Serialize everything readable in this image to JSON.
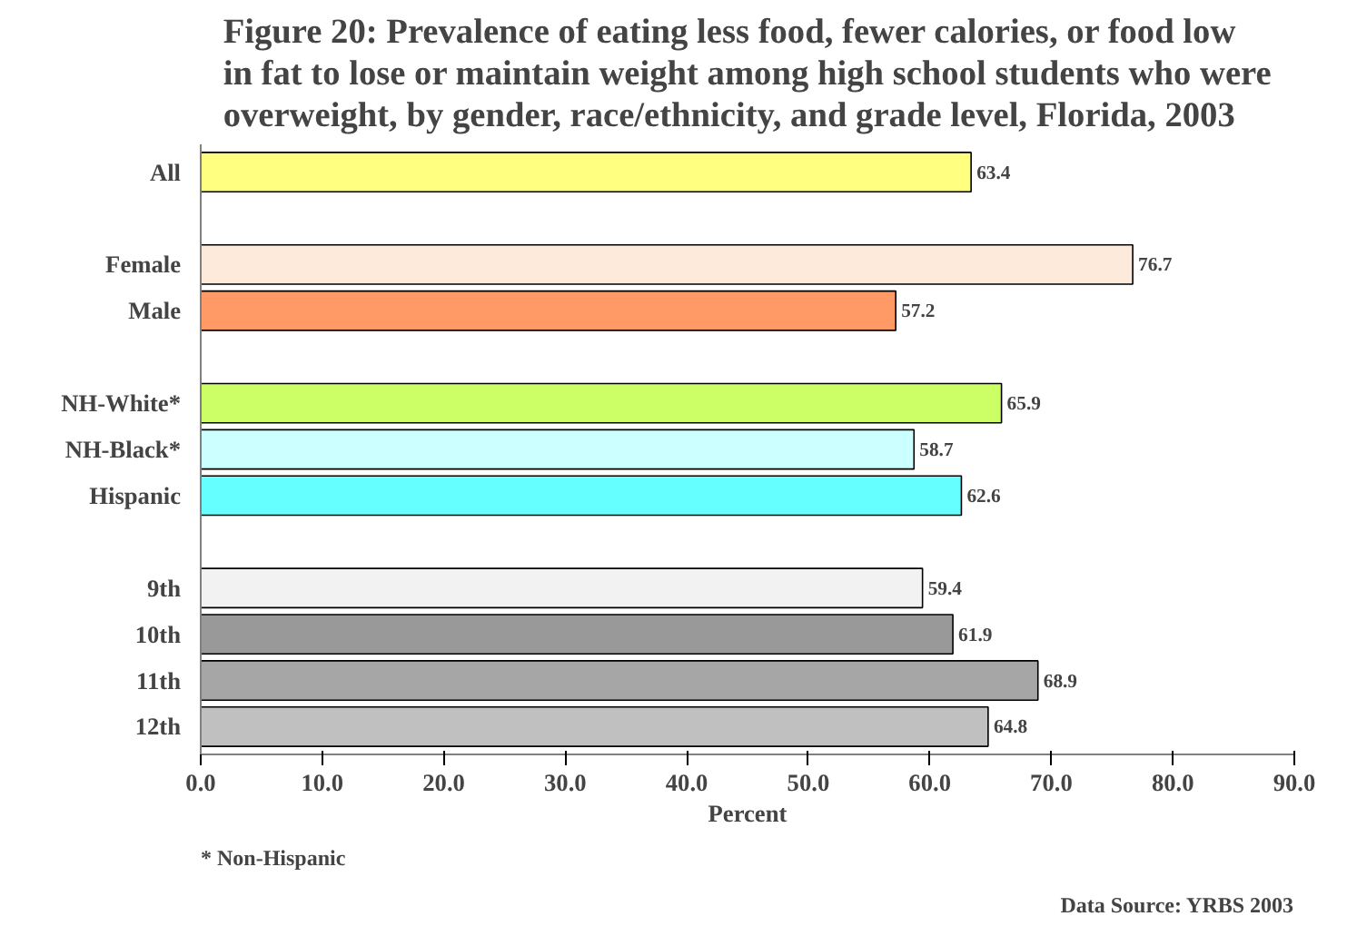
{
  "chart_data": {
    "type": "bar",
    "orientation": "horizontal",
    "title": "Figure 20: Prevalence of eating less food, fewer calories, or food low\nin fat to lose or maintain weight among high school students who were\noverweight, by gender, race/ethnicity, and grade level, Florida, 2003",
    "xlabel": "Percent",
    "categories": [
      "All",
      null,
      "Female",
      "Male",
      null,
      "NH-White*",
      "NH-Black*",
      "Hispanic",
      null,
      "9th",
      "10th",
      "11th",
      "12th"
    ],
    "values": [
      63.4,
      null,
      76.7,
      57.2,
      null,
      65.9,
      58.7,
      62.6,
      null,
      59.4,
      61.9,
      68.9,
      64.8
    ],
    "colors": [
      "#ffff80",
      "#ffffff",
      "#fdeada",
      "#ff9966",
      "#ffffff",
      "#ccff66",
      "#ccffff",
      "#66ffff",
      "#ffffff",
      "#f2f2f2",
      "#999999",
      "#a6a6a6",
      "#c0c0c0"
    ],
    "xlim": [
      0,
      90
    ],
    "xticks": [
      {
        "value": 0,
        "label": "0.0"
      },
      {
        "value": 10,
        "label": "10.0"
      },
      {
        "value": 20,
        "label": "20.0"
      },
      {
        "value": 30,
        "label": "30.0"
      },
      {
        "value": 40,
        "label": "40.0"
      },
      {
        "value": 50,
        "label": "50.0"
      },
      {
        "value": 60,
        "label": "60.0"
      },
      {
        "value": 70,
        "label": "70.0"
      },
      {
        "value": 80,
        "label": "80.0"
      },
      {
        "value": 90,
        "label": "90.0"
      }
    ],
    "data_labels": true,
    "grid": false,
    "annotations": [
      "* Non-Hispanic",
      "Data Source: YRBS 2003"
    ]
  }
}
